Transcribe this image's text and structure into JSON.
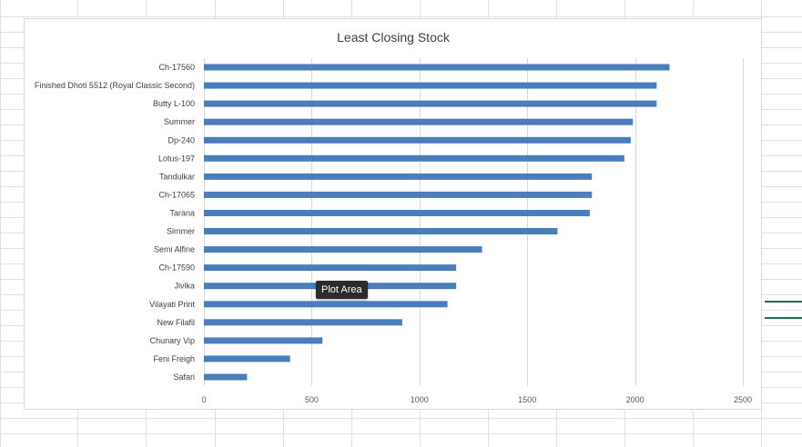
{
  "tooltip": {
    "text": "Plot Area"
  },
  "colors": {
    "bar": "#4a7ebb",
    "grid": "#d9d9d9",
    "sheet_grid": "#e1e1e1",
    "selection": "#1e7145"
  },
  "chart_data": {
    "type": "bar",
    "orientation": "horizontal",
    "title": "Least Closing Stock",
    "xlabel": "",
    "ylabel": "",
    "xlim": [
      0,
      2500
    ],
    "xticks": [
      0,
      500,
      1000,
      1500,
      2000,
      2500
    ],
    "grid": true,
    "legend": "none",
    "categories": [
      "Ch-17560",
      "Finished Dhoti 5512 (Royal Classic Second)",
      "Butty L-100",
      "Summer",
      "Dp-240",
      "Lotus-197",
      "Tandulkar",
      "Ch-17065",
      "Tarana",
      "Simmer",
      "Semi Alfine",
      "Ch-17590",
      "Jivika",
      "Vilayati Print",
      "New Filafil",
      "Chunary Vip",
      "Feni Freigh",
      "Safari"
    ],
    "values": [
      2160,
      2100,
      2100,
      1990,
      1980,
      1950,
      1800,
      1800,
      1790,
      1640,
      1290,
      1170,
      1170,
      1130,
      920,
      550,
      400,
      200
    ]
  }
}
